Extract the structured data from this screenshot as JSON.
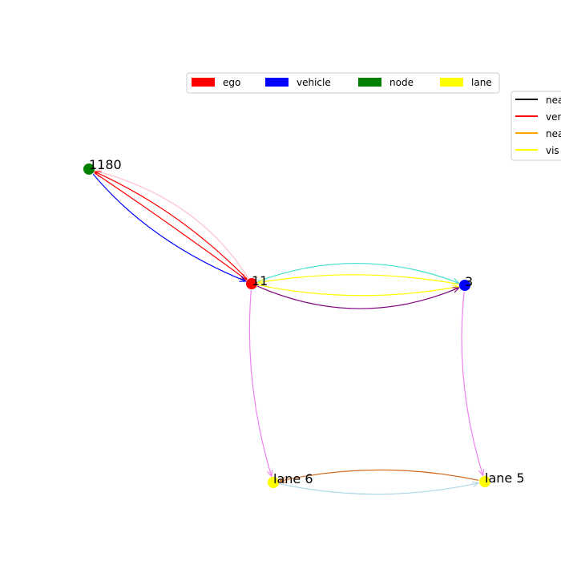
{
  "node_legend": [
    {
      "label": "ego",
      "color": "#ff0000"
    },
    {
      "label": "vehicle",
      "color": "#0000ff"
    },
    {
      "label": "node",
      "color": "#008000"
    },
    {
      "label": "lane",
      "color": "#ffff00"
    }
  ],
  "edge_legend": [
    {
      "label": "nea",
      "color": "#000000"
    },
    {
      "label": "ver",
      "color": "#ff0000"
    },
    {
      "label": "nea",
      "color": "#ffa500"
    },
    {
      "label": "vis",
      "color": "#ffff00"
    }
  ],
  "nodes": [
    {
      "id": "1180",
      "label": "1180",
      "type": "node",
      "color": "#008000"
    },
    {
      "id": "11",
      "label": "11",
      "type": "ego",
      "color": "#ff0000"
    },
    {
      "id": "3",
      "label": "3",
      "type": "vehicle",
      "color": "#0000ff"
    },
    {
      "id": "lane6",
      "label": "lane 6",
      "type": "lane",
      "color": "#ffff00"
    },
    {
      "id": "lane5",
      "label": "lane 5",
      "type": "lane",
      "color": "#ffff00"
    }
  ],
  "edges": [
    {
      "from": "11",
      "to": "1180",
      "color": "#ffc0cb"
    },
    {
      "from": "11",
      "to": "1180",
      "color": "#ff0000"
    },
    {
      "from": "1180",
      "to": "11",
      "color": "#ff0000"
    },
    {
      "from": "1180",
      "to": "11",
      "color": "#0000ff"
    },
    {
      "from": "11",
      "to": "3",
      "color": "#40e0d0"
    },
    {
      "from": "3",
      "to": "11",
      "color": "#ffff00"
    },
    {
      "from": "11",
      "to": "3",
      "color": "#ffff00"
    },
    {
      "from": "11",
      "to": "3",
      "color": "#800080"
    },
    {
      "from": "11",
      "to": "lane6",
      "color": "#ee82ee"
    },
    {
      "from": "3",
      "to": "lane5",
      "color": "#ee82ee"
    },
    {
      "from": "lane5",
      "to": "lane6",
      "color": "#d2691e"
    },
    {
      "from": "lane6",
      "to": "lane5",
      "color": "#add8e6"
    }
  ]
}
